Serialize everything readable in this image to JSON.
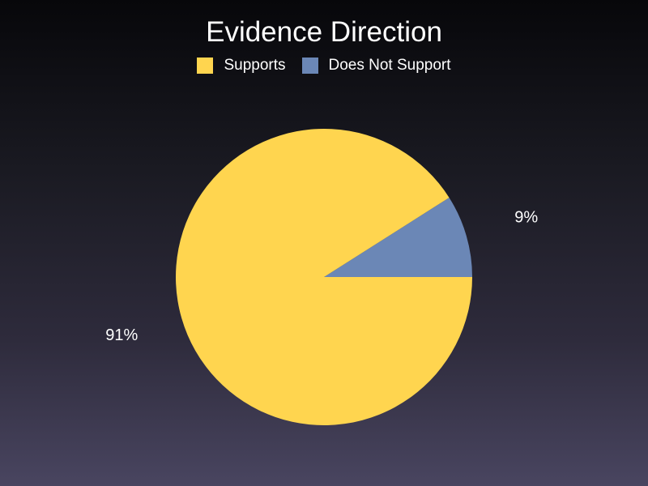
{
  "chart_data": {
    "type": "pie",
    "title": "Evidence Direction",
    "legend_position": "top",
    "slices": [
      {
        "label": "Supports",
        "value": 91,
        "display": "91%",
        "color": "#ffd54f"
      },
      {
        "label": "Does Not Support",
        "value": 9,
        "display": "9%",
        "color": "#6b87b6"
      }
    ]
  }
}
